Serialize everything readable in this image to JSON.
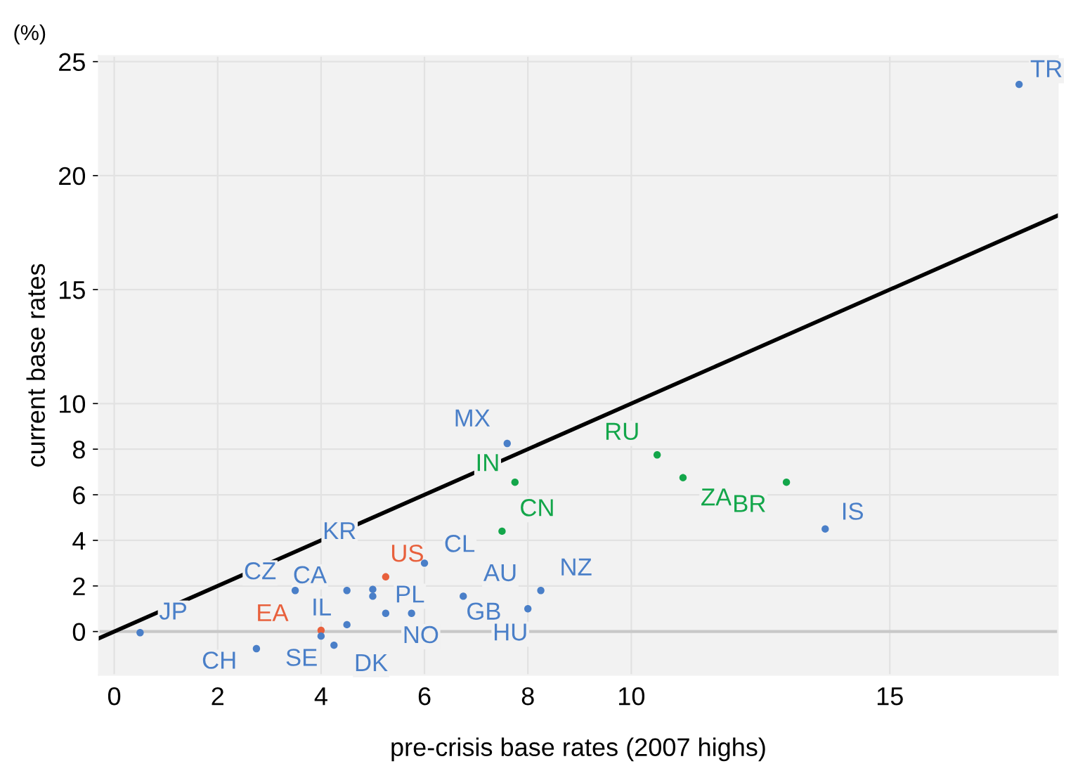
{
  "chart_data": {
    "type": "scatter",
    "xlabel": "pre-crisis base rates (2007 highs)",
    "ylabel": "current base rates",
    "xlim": [
      -0.3,
      18.25
    ],
    "ylim": [
      -1.9,
      25.25
    ],
    "xticks": [
      0,
      2,
      4,
      6,
      8,
      10,
      15
    ],
    "yticks": [
      0,
      2,
      4,
      6,
      8,
      10,
      15,
      20,
      25
    ],
    "grid": true,
    "series": [
      {
        "marker": "circle",
        "x": [
          17.5,
          0.5,
          2.75,
          4.0,
          4.0,
          4.25,
          4.5,
          3.5,
          4.5,
          5.0,
          5.0,
          5.25,
          5.25,
          5.75,
          6.75,
          8.0,
          8.25,
          6.0,
          7.6,
          7.75,
          7.5,
          10.5,
          11.0,
          13.0,
          13.75
        ],
        "values": [
          24.0,
          -0.05,
          -0.75,
          0.05,
          -0.2,
          -0.6,
          0.3,
          1.8,
          1.8,
          1.85,
          1.55,
          2.4,
          0.8,
          0.8,
          1.55,
          1.0,
          1.8,
          3.0,
          8.25,
          6.55,
          4.4,
          7.75,
          6.75,
          6.55,
          4.5
        ],
        "colors": [
          "#4a7fc8",
          "#4a7fc8",
          "#4a7fc8",
          "#e8603c",
          "#4a7fc8",
          "#4a7fc8",
          "#4a7fc8",
          "#4a7fc8",
          "#4a7fc8",
          "#4a7fc8",
          "#4a7fc8",
          "#e8603c",
          "#4a7fc8",
          "#4a7fc8",
          "#4a7fc8",
          "#4a7fc8",
          "#4a7fc8",
          "#4a7fc8",
          "#4a7fc8",
          "#13a64a",
          "#13a64a",
          "#13a64a",
          "#13a64a",
          "#13a64a",
          "#4a7fc8"
        ]
      },
      {
        "type": "line",
        "color": "#000000",
        "line_style": "solid",
        "x": [
          -0.3,
          18.25
        ],
        "values": [
          -0.3,
          18.25
        ]
      }
    ],
    "ref_lines": [
      {
        "axis": "y",
        "value": 0,
        "color": "#c8c8c8"
      }
    ],
    "annotations": [
      "(%)",
      {
        "text": "TR",
        "x": 17.5,
        "y": 24.0
      },
      {
        "text": "JP",
        "x": 0.5,
        "y": -0.05
      },
      {
        "text": "CH",
        "x": 2.75,
        "y": -0.75
      },
      {
        "text": "EA",
        "x": 4.0,
        "y": 0.05
      },
      {
        "text": "SE",
        "x": 4.0,
        "y": -0.2
      },
      {
        "text": "DK",
        "x": 4.25,
        "y": -0.6
      },
      {
        "text": "IL",
        "x": 4.5,
        "y": 0.3
      },
      {
        "text": "CZ",
        "x": 3.5,
        "y": 1.8
      },
      {
        "text": "CA",
        "x": 4.5,
        "y": 1.8
      },
      {
        "text": "KR",
        "x": 5.0,
        "y": 1.85
      },
      {
        "text": "PL",
        "x": 5.0,
        "y": 1.55
      },
      {
        "text": "US",
        "x": 5.25,
        "y": 2.4
      },
      {
        "text": "NO",
        "x": 5.25,
        "y": 0.8
      },
      {
        "text": "GB",
        "x": 5.75,
        "y": 0.8
      },
      {
        "text": "AU",
        "x": 6.75,
        "y": 1.55
      },
      {
        "text": "HU",
        "x": 8.0,
        "y": 1.0
      },
      {
        "text": "NZ",
        "x": 8.25,
        "y": 1.8
      },
      {
        "text": "CL",
        "x": 6.0,
        "y": 3.0
      },
      {
        "text": "MX",
        "x": 7.6,
        "y": 8.25
      },
      {
        "text": "IN",
        "x": 7.75,
        "y": 6.55
      },
      {
        "text": "CN",
        "x": 7.5,
        "y": 4.4
      },
      {
        "text": "RU",
        "x": 10.5,
        "y": 7.75
      },
      {
        "text": "ZA",
        "x": 11.0,
        "y": 6.75
      },
      {
        "text": "BR",
        "x": 13.0,
        "y": 6.55
      },
      {
        "text": "IS",
        "x": 13.75,
        "y": 4.5
      }
    ]
  }
}
